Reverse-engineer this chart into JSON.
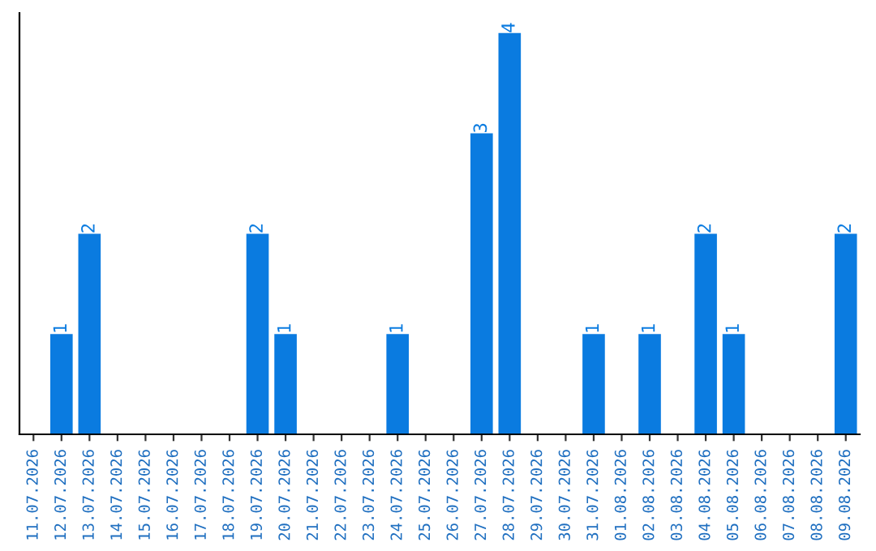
{
  "chart_data": {
    "type": "bar",
    "categories": [
      "11.07.2026",
      "12.07.2026",
      "13.07.2026",
      "14.07.2026",
      "15.07.2026",
      "16.07.2026",
      "17.07.2026",
      "18.07.2026",
      "19.07.2026",
      "20.07.2026",
      "21.07.2026",
      "22.07.2026",
      "23.07.2026",
      "24.07.2026",
      "25.07.2026",
      "26.07.2026",
      "27.07.2026",
      "28.07.2026",
      "29.07.2026",
      "30.07.2026",
      "31.07.2026",
      "01.08.2026",
      "02.08.2026",
      "03.08.2026",
      "04.08.2026",
      "05.08.2026",
      "06.08.2026",
      "07.08.2026",
      "08.08.2026",
      "09.08.2026"
    ],
    "values": [
      0,
      1,
      2,
      0,
      0,
      0,
      0,
      0,
      2,
      1,
      0,
      0,
      0,
      1,
      0,
      0,
      3,
      4,
      0,
      0,
      1,
      0,
      1,
      0,
      2,
      1,
      0,
      0,
      0,
      2
    ],
    "value_labels": [
      null,
      "1",
      "2",
      null,
      null,
      null,
      null,
      null,
      "2",
      "1",
      null,
      null,
      null,
      "1",
      null,
      null,
      "3",
      "4",
      null,
      null,
      "1",
      null,
      "1",
      null,
      "2",
      "1",
      null,
      null,
      null,
      "2"
    ],
    "color": "#0a7be0",
    "ylim": [
      0,
      4.2
    ],
    "tick_labels": "x",
    "grid": false,
    "legend": false
  }
}
